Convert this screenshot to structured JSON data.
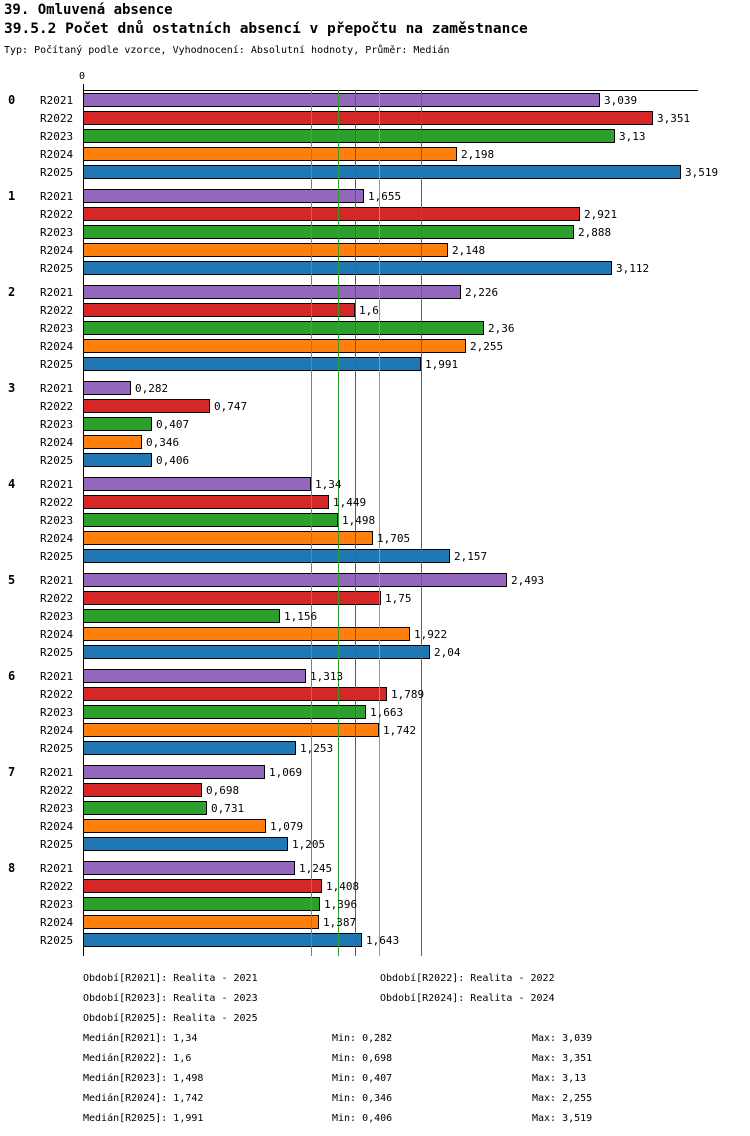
{
  "title": "39. Omluvená absence",
  "subtitle": "39.5.2 Počet dnů ostatních absencí v přepočtu na zaměstnance",
  "meta": "Typ: Počítaný podle vzorce, Vyhodnocení: Absolutní hodnoty, Průměr: Medián",
  "axis": {
    "zero_label": "0"
  },
  "chart_data": {
    "type": "bar",
    "orientation": "horizontal",
    "title": "39.5.2 Počet dnů ostatních absencí v přepočtu na zaměstnance",
    "xlabel": "",
    "ylabel": "",
    "xlim": [
      0,
      3.62
    ],
    "grid": false,
    "decimal_separator": ",",
    "categories": [
      "0",
      "1",
      "2",
      "3",
      "4",
      "5",
      "6",
      "7",
      "8"
    ],
    "series": [
      {
        "name": "R2021",
        "color": "#9467BD",
        "median": 1.34,
        "values": [
          3.039,
          1.655,
          2.226,
          0.282,
          1.34,
          2.493,
          1.313,
          1.069,
          1.245
        ],
        "labels": [
          "3,039",
          "1,655",
          "2,226",
          "0,282",
          "1,34",
          "2,493",
          "1,313",
          "1,069",
          "1,245"
        ]
      },
      {
        "name": "R2022",
        "color": "#D62728",
        "median": 1.6,
        "values": [
          3.351,
          2.921,
          1.6,
          0.747,
          1.449,
          1.75,
          1.789,
          0.698,
          1.408
        ],
        "labels": [
          "3,351",
          "2,921",
          "1,6",
          "0,747",
          "1,449",
          "1,75",
          "1,789",
          "0,698",
          "1,408"
        ]
      },
      {
        "name": "R2023",
        "color": "#2CA02C",
        "median": 1.498,
        "values": [
          3.13,
          2.888,
          2.36,
          0.407,
          1.498,
          1.156,
          1.663,
          0.731,
          1.396
        ],
        "labels": [
          "3,13",
          "2,888",
          "2,36",
          "0,407",
          "1,498",
          "1,156",
          "1,663",
          "0,731",
          "1,396"
        ]
      },
      {
        "name": "R2024",
        "color": "#FF7F0E",
        "median": 1.742,
        "values": [
          2.198,
          2.148,
          2.255,
          0.346,
          1.705,
          1.922,
          1.742,
          1.079,
          1.387
        ],
        "labels": [
          "2,198",
          "2,148",
          "2,255",
          "0,346",
          "1,705",
          "1,922",
          "1,742",
          "1,079",
          "1,387"
        ]
      },
      {
        "name": "R2025",
        "color": "#1F77B4",
        "median": 1.991,
        "values": [
          3.519,
          3.112,
          1.991,
          0.406,
          2.157,
          2.04,
          1.253,
          1.205,
          1.643
        ],
        "labels": [
          "3,519",
          "3,112",
          "1,991",
          "0,406",
          "2,157",
          "2,04",
          "1,253",
          "1,205",
          "1,643"
        ]
      }
    ]
  },
  "legend": {
    "periods": [
      "Období[R2021]: Realita - 2021",
      "Období[R2022]: Realita - 2022",
      "Období[R2023]: Realita - 2023",
      "Období[R2024]: Realita - 2024",
      "Období[R2025]: Realita - 2025"
    ],
    "stats": [
      {
        "median": "Medián[R2021]: 1,34",
        "min": "Min: 0,282",
        "max": "Max: 3,039"
      },
      {
        "median": "Medián[R2022]: 1,6",
        "min": "Min: 0,698",
        "max": "Max: 3,351"
      },
      {
        "median": "Medián[R2023]: 1,498",
        "min": "Min: 0,407",
        "max": "Max: 3,13"
      },
      {
        "median": "Medián[R2024]: 1,742",
        "min": "Min: 0,346",
        "max": "Max: 2,255"
      },
      {
        "median": "Medián[R2025]: 1,991",
        "min": "Min: 0,406",
        "max": "Max: 3,519"
      }
    ]
  }
}
